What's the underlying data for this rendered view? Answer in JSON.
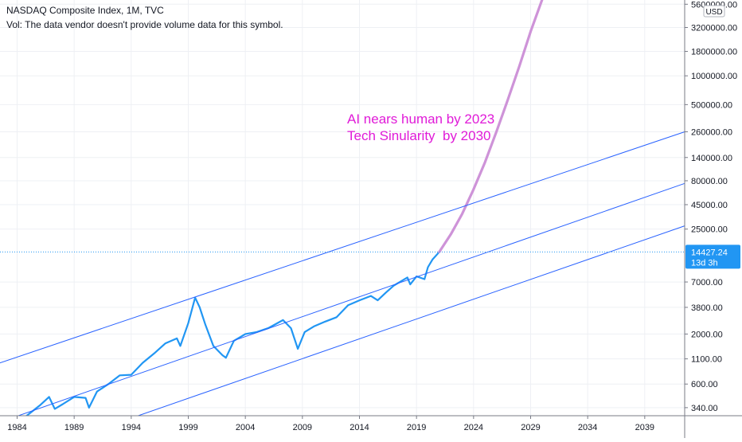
{
  "header": {
    "title": "NASDAQ Composite Index, 1M, TVC",
    "vol_note": "Vol: The data vendor doesn't provide volume data for this symbol."
  },
  "annotation": {
    "text": "AI nears human by 2023\nTech Sinularity  by 2030",
    "color": "#e01bd8"
  },
  "price_axis": {
    "currency": "USD",
    "last_value_label": "14427.24",
    "countdown_label": "13d 3h"
  },
  "colors": {
    "price_line": "#2196f3",
    "projection": "#ce93d8",
    "channel": "#2962ff",
    "grid": "#eef0f4",
    "badge": "#2196f3",
    "last_price_dotted": "#2196f3"
  },
  "chart_data": {
    "type": "line",
    "title": "NASDAQ Composite Index, 1M, TVC",
    "y_scale": "log",
    "ylim": [
      280,
      6200000
    ],
    "xlim": [
      1983.0,
      2043.0
    ],
    "y_ticks": [
      {
        "value": 5600000,
        "label": "5600000.00"
      },
      {
        "value": 3200000,
        "label": "3200000.00"
      },
      {
        "value": 1800000,
        "label": "1800000.00"
      },
      {
        "value": 1000000,
        "label": "1000000.00"
      },
      {
        "value": 500000,
        "label": "500000.00"
      },
      {
        "value": 260000,
        "label": "260000.00"
      },
      {
        "value": 140000,
        "label": "140000.00"
      },
      {
        "value": 80000,
        "label": "80000.00"
      },
      {
        "value": 45000,
        "label": "45000.00"
      },
      {
        "value": 25000,
        "label": "25000.00"
      },
      {
        "value": 7000,
        "label": "7000.00"
      },
      {
        "value": 3800,
        "label": "3800.00"
      },
      {
        "value": 2000,
        "label": "2000.00"
      },
      {
        "value": 1100,
        "label": "1100.00"
      },
      {
        "value": 600,
        "label": "600.00"
      },
      {
        "value": 340,
        "label": "340.00"
      }
    ],
    "x_ticks": [
      "1984",
      "1989",
      "1994",
      "1999",
      "2004",
      "2009",
      "2014",
      "2019",
      "2024",
      "2029",
      "2034",
      "2039"
    ],
    "last_price": 14427.24,
    "series": [
      {
        "kind": "price",
        "x": [
          1983.0,
          1984.0,
          1984.6,
          1985.5,
          1986.5,
          1987.3,
          1987.8,
          1988.5,
          1989.5,
          1990.5,
          1990.8,
          1991.5,
          1992.5,
          1993.5,
          1994.5,
          1995.5,
          1996.5,
          1997.5,
          1998.5,
          1998.8,
          1999.5,
          2000.1,
          2000.5,
          2001.0,
          2001.7,
          2002.5,
          2002.8,
          2003.5,
          2004.5,
          2005.5,
          2006.5,
          2007.8,
          2008.5,
          2009.1,
          2009.7,
          2010.5,
          2011.5,
          2012.5,
          2013.5,
          2014.5,
          2015.5,
          2016.1,
          2016.8,
          2017.5,
          2018.7,
          2018.95,
          2019.5,
          2020.2,
          2020.5,
          2020.9,
          2021.5
        ],
        "y": [
          270,
          260,
          240,
          290,
          360,
          440,
          330,
          370,
          440,
          430,
          340,
          500,
          600,
          740,
          750,
          1000,
          1250,
          1600,
          1800,
          1500,
          2600,
          4800,
          3800,
          2500,
          1500,
          1200,
          1130,
          1700,
          2000,
          2100,
          2300,
          2800,
          2300,
          1400,
          2100,
          2400,
          2700,
          3000,
          4000,
          4500,
          5000,
          4500,
          5400,
          6400,
          7800,
          6600,
          8000,
          7500,
          10000,
          12000,
          14427.24
        ]
      },
      {
        "kind": "projection",
        "x": [
          2021.5,
          2022.5,
          2023.5,
          2024.5,
          2025.5,
          2026.5,
          2027.5,
          2028.5,
          2029.5,
          2030.5
        ],
        "y": [
          14427.24,
          22000,
          36000,
          65000,
          125000,
          260000,
          560000,
          1250000,
          2900000,
          6200000
        ]
      },
      {
        "kind": "channel",
        "x": [
          1983.0,
          2043.0
        ],
        "y": [
          1000,
          260000
        ]
      },
      {
        "kind": "channel",
        "x": [
          1983.0,
          2043.0
        ],
        "y": [
          240,
          75000
        ]
      },
      {
        "kind": "channel",
        "x": [
          1993.5,
          2043.0
        ],
        "y": [
          240,
          27000
        ]
      }
    ]
  }
}
